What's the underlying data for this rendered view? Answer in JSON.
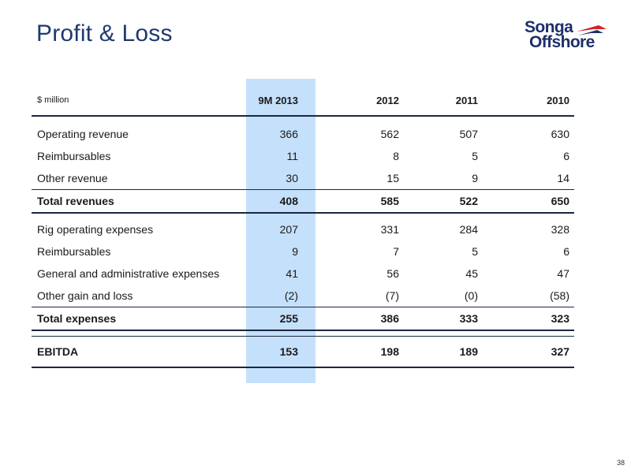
{
  "title": "Profit & Loss",
  "logo": {
    "line1": "Songa",
    "line2": "Offshore"
  },
  "table": {
    "header": [
      "$ million",
      "9M 2013",
      "2012",
      "2011",
      "2010"
    ],
    "rows": [
      {
        "label": "Operating revenue",
        "values": [
          "366",
          "562",
          "507",
          "630"
        ],
        "type": "normal"
      },
      {
        "label": "Reimbursables",
        "values": [
          "11",
          "8",
          "5",
          "6"
        ],
        "type": "normal"
      },
      {
        "label": "Other revenue",
        "values": [
          "30",
          "15",
          "9",
          "14"
        ],
        "type": "normal"
      },
      {
        "label": "Total revenues",
        "values": [
          "408",
          "585",
          "522",
          "650"
        ],
        "type": "total"
      },
      {
        "label": "Rig operating expenses",
        "values": [
          "207",
          "331",
          "284",
          "328"
        ],
        "type": "normal"
      },
      {
        "label": "Reimbursables",
        "values": [
          "9",
          "7",
          "5",
          "6"
        ],
        "type": "normal"
      },
      {
        "label": "General and administrative expenses",
        "values": [
          "41",
          "56",
          "45",
          "47"
        ],
        "type": "normal"
      },
      {
        "label": "Other gain and loss",
        "values": [
          "(2)",
          "(7)",
          "(0)",
          "(58)"
        ],
        "type": "normal"
      },
      {
        "label": "Total expenses",
        "values": [
          "255",
          "386",
          "333",
          "323"
        ],
        "type": "total"
      },
      {
        "label": "EBITDA",
        "values": [
          "153",
          "198",
          "189",
          "327"
        ],
        "type": "ebitda"
      }
    ]
  },
  "page_number": "38",
  "colors": {
    "title": "#1f3a6e",
    "highlight": "#c5e0fb",
    "logo_blue": "#1d2f6b",
    "logo_red": "#d2232a"
  }
}
